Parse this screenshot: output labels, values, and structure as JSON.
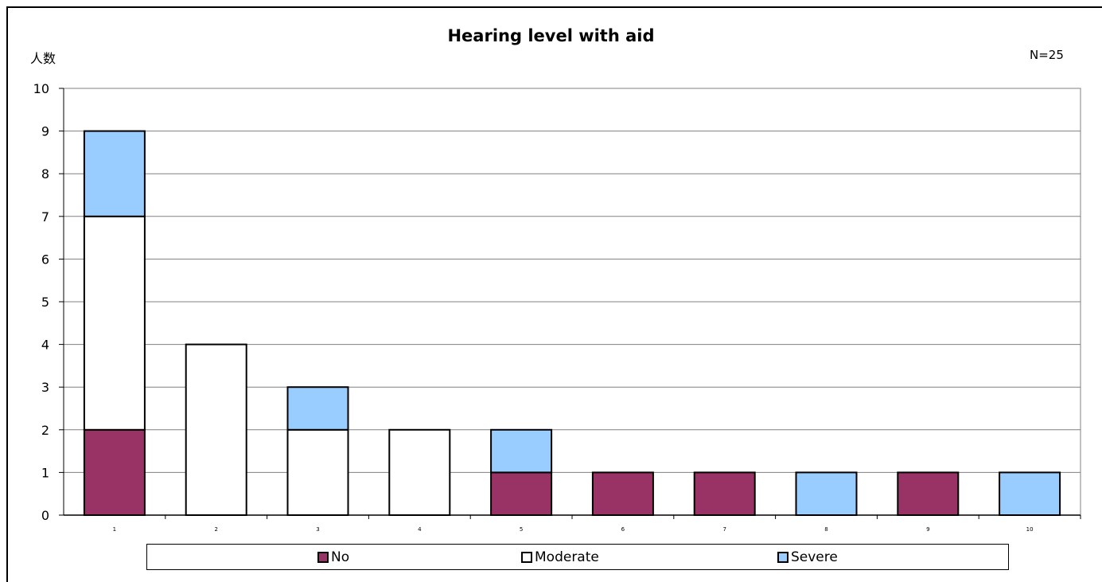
{
  "chart_data": {
    "type": "bar",
    "stacked": true,
    "title": "Hearing level with aid",
    "ylabel": "人数",
    "annotation": "N=25",
    "categories": [
      "1",
      "2",
      "3",
      "4",
      "5",
      "6",
      "7",
      "8",
      "9",
      "10"
    ],
    "series": [
      {
        "name": "No",
        "color": "#993366",
        "values": [
          2,
          0,
          0,
          0,
          1,
          1,
          1,
          0,
          1,
          0
        ]
      },
      {
        "name": "Moderate",
        "color": "#ffffff",
        "values": [
          5,
          4,
          2,
          2,
          0,
          0,
          0,
          0,
          0,
          0
        ]
      },
      {
        "name": "Severe",
        "color": "#99ccff",
        "values": [
          2,
          0,
          1,
          0,
          1,
          0,
          0,
          1,
          0,
          1
        ]
      }
    ],
    "ylim": [
      0,
      10
    ],
    "yticks": [
      "0",
      "1",
      "2",
      "3",
      "4",
      "5",
      "6",
      "7",
      "8",
      "9",
      "10"
    ],
    "grid": true,
    "legend_position": "bottom"
  }
}
